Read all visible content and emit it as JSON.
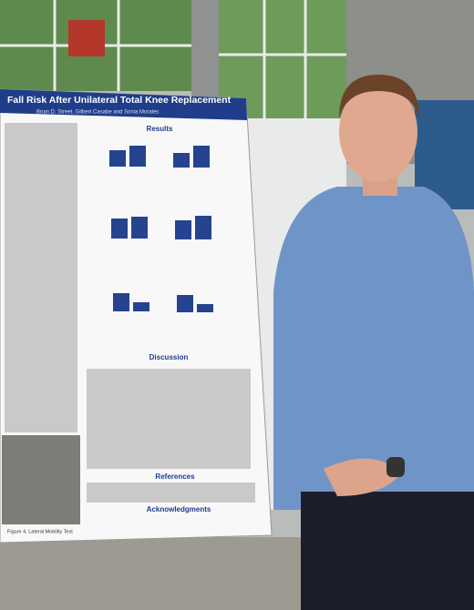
{
  "poster": {
    "title": "Fall Risk After Unilateral Total Knee Replacement",
    "authors": "Brian D. Street, Gilbert Casabe and Sonia Morales",
    "sections": [
      "Results",
      "Discussion",
      "References",
      "Acknowledgments"
    ],
    "figure_caption": "Figure 4. Lateral Mobility Test"
  }
}
